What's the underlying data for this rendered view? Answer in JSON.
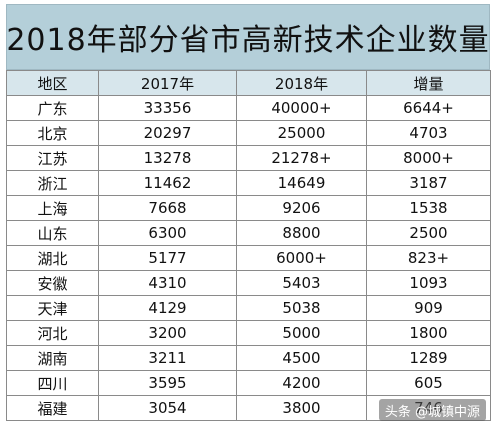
{
  "title": "2018年部分省市高新技术企业数量",
  "table": {
    "headers": [
      "地区",
      "2017年",
      "2018年",
      "增量"
    ],
    "rows": [
      [
        "广东",
        "33356",
        "40000+",
        "6644+"
      ],
      [
        "北京",
        "20297",
        "25000",
        "4703"
      ],
      [
        "江苏",
        "13278",
        "21278+",
        "8000+"
      ],
      [
        "浙江",
        "11462",
        "14649",
        "3187"
      ],
      [
        "上海",
        "7668",
        "9206",
        "1538"
      ],
      [
        "山东",
        "6300",
        "8800",
        "2500"
      ],
      [
        "湖北",
        "5177",
        "6000+",
        "823+"
      ],
      [
        "安徽",
        "4310",
        "5403",
        "1093"
      ],
      [
        "天津",
        "4129",
        "5038",
        "909"
      ],
      [
        "河北",
        "3200",
        "5000",
        "1800"
      ],
      [
        "湖南",
        "3211",
        "4500",
        "1289"
      ],
      [
        "四川",
        "3595",
        "4200",
        "605"
      ],
      [
        "福建",
        "3054",
        "3800",
        "746"
      ]
    ]
  },
  "watermark": "头条 @城镇中源",
  "colors": {
    "title_band": "#b4cfd9",
    "header_row": "#d7e6ec",
    "grid_line": "#8a8a8a"
  }
}
